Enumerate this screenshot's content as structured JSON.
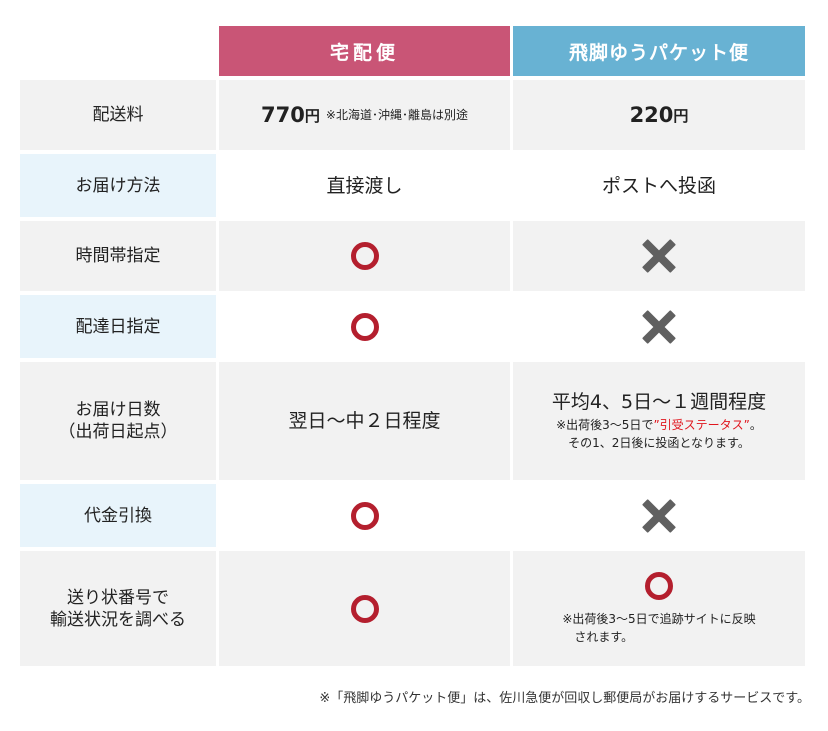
{
  "colors": {
    "header_takuhai": "#c95576",
    "header_hikyaku": "#68b2d3",
    "label_blue": "#e8f4fb",
    "label_gray": "#f2f2f2",
    "row_gray": "#f2f2f2",
    "circle": "#b41f2e",
    "cross": "#606060",
    "highlight": "#e0161e"
  },
  "headers": {
    "takuhai": "宅配便",
    "hikyaku": "飛脚ゆうパケット便"
  },
  "rows": {
    "fee": {
      "label": "配送料",
      "takuhai_price": "770",
      "takuhai_unit": "円",
      "takuhai_note": "※北海道･沖縄･離島は別途",
      "hikyaku_price": "220",
      "hikyaku_unit": "円"
    },
    "delivery": {
      "label": "お届け方法",
      "takuhai": "直接渡し",
      "hikyaku": "ポストへ投函"
    },
    "time": {
      "label": "時間帯指定",
      "takuhai_icon": "circle-icon",
      "hikyaku_icon": "cross-icon"
    },
    "date": {
      "label": "配達日指定",
      "takuhai_icon": "circle-icon",
      "hikyaku_icon": "cross-icon"
    },
    "days": {
      "label_line1": "お届け日数",
      "label_line2": "（出荷日起点）",
      "takuhai": "翌日～中２日程度",
      "hikyaku_main": "平均4、5日～１週間程度",
      "hikyaku_note1_prefix": "※出荷後3～5日で",
      "hikyaku_note1_highlight": "”引受ステータス”",
      "hikyaku_note1_suffix": "。",
      "hikyaku_note2": "その1、2日後に投函となります。"
    },
    "cod": {
      "label": "代金引換",
      "takuhai_icon": "circle-icon",
      "hikyaku_icon": "cross-icon"
    },
    "tracking": {
      "label_line1": "送り状番号で",
      "label_line2": "輸送状況を調べる",
      "takuhai_icon": "circle-icon",
      "hikyaku_icon": "circle-icon",
      "hikyaku_note1": "※出荷後3～5日で追跡サイトに反映",
      "hikyaku_note2": "されます。"
    }
  },
  "footer": "※「飛脚ゆうパケット便」は、佐川急便が回収し郵便局がお届けするサービスです。"
}
